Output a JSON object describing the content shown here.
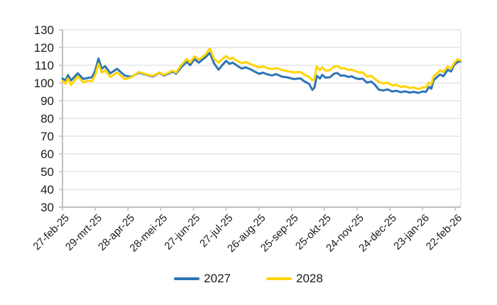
{
  "chart_data": {
    "type": "line",
    "title": "",
    "xlabel": "",
    "ylabel": "",
    "grid": true,
    "legend_position": "bottom",
    "y_axis": {
      "min": 30,
      "max": 130,
      "step": 10,
      "tick_labels": [
        "130",
        "120",
        "110",
        "100",
        "90",
        "80",
        "70",
        "60",
        "50",
        "40",
        "30"
      ]
    },
    "x_axis": {
      "tick_days": [
        0,
        30,
        60,
        90,
        120,
        150,
        180,
        210,
        240,
        270,
        300,
        330,
        360
      ],
      "tick_labels": [
        "27-feb-25",
        "29-mrt-25",
        "28-apr-25",
        "28-mei-25",
        "27-jun-25",
        "27-jul-25",
        "26-aug-25",
        "25-sep-25",
        "25-okt-25",
        "24-nov-25",
        "24-dec-25",
        "23-jan-26",
        "22-feb-26"
      ],
      "span_days": 365
    },
    "days": [
      0,
      3,
      5,
      8,
      14,
      19,
      23,
      27,
      30,
      33,
      36,
      39,
      44,
      50,
      57,
      63,
      70,
      76,
      83,
      89,
      93,
      98,
      101,
      104,
      109,
      114,
      117,
      121,
      125,
      128,
      131,
      135,
      139,
      143,
      147,
      150,
      153,
      156,
      160,
      164,
      168,
      172,
      176,
      180,
      184,
      188,
      192,
      196,
      201,
      206,
      212,
      218,
      222,
      226,
      229,
      231,
      233,
      236,
      238,
      241,
      245,
      249,
      252,
      255,
      258,
      262,
      265,
      268,
      272,
      275,
      279,
      283,
      286,
      290,
      294,
      298,
      302,
      306,
      310,
      314,
      318,
      322,
      326,
      330,
      333,
      336,
      338,
      340,
      343,
      346,
      349,
      353,
      356,
      359,
      362,
      365
    ],
    "series": [
      {
        "name": "2027",
        "color": "#2E75B6",
        "values": [
          102.5,
          101.5,
          104.5,
          101.5,
          105.5,
          102.3,
          102.8,
          103.2,
          107,
          113.8,
          108,
          109.5,
          105.5,
          108,
          104.2,
          103.5,
          105.8,
          104.8,
          103.6,
          105.8,
          104.2,
          105.5,
          106.5,
          105.2,
          109,
          112,
          110,
          113.5,
          111.5,
          113,
          114.5,
          117,
          111,
          107.5,
          110.5,
          112.5,
          110.8,
          111.5,
          109.8,
          108.2,
          108.8,
          107.8,
          106.5,
          105.2,
          105.8,
          104.8,
          104.3,
          105,
          103.6,
          103.2,
          102.2,
          102.6,
          100.8,
          99.5,
          96.1,
          97.5,
          104.1,
          102.5,
          104.6,
          103,
          103.2,
          105.3,
          105.6,
          104.1,
          104.3,
          103.4,
          103.8,
          102.8,
          102.2,
          102.5,
          100.2,
          100.8,
          99.2,
          96.2,
          95.8,
          96.4,
          95.2,
          95.6,
          94.8,
          95.3,
          94.6,
          95,
          94.4,
          95.2,
          95,
          97.8,
          96.8,
          101.5,
          103.2,
          104.8,
          103.8,
          107.5,
          106.5,
          110.2,
          111.8,
          112.2
        ]
      },
      {
        "name": "2028",
        "color": "#FFD400",
        "values": [
          101.2,
          99.6,
          102.6,
          98.8,
          103.8,
          100.3,
          101.2,
          101,
          104.5,
          110.8,
          105.8,
          107.2,
          103.4,
          106,
          102.2,
          103.2,
          106.2,
          105,
          104,
          106,
          104.6,
          106,
          107,
          105.8,
          110.2,
          113.5,
          111.5,
          115,
          113.2,
          114.5,
          116,
          119.5,
          113.5,
          111.5,
          113.8,
          115.2,
          113.5,
          114.3,
          112.5,
          111.2,
          111.8,
          110.8,
          109.8,
          108.8,
          109.3,
          108.4,
          107.9,
          108.4,
          107.4,
          106.7,
          106,
          106.2,
          104.6,
          103.4,
          101.5,
          102.5,
          109.3,
          107.2,
          108.8,
          107,
          107.2,
          109.2,
          109.6,
          108.2,
          108.4,
          107.3,
          107.6,
          106.8,
          105.9,
          106.1,
          103.6,
          104,
          102.4,
          100.6,
          99.8,
          100.2,
          98.6,
          98.9,
          97.8,
          98.2,
          97.2,
          97.5,
          96.6,
          97.4,
          97.6,
          100.2,
          99.4,
          103.6,
          105.2,
          107.2,
          106.2,
          109.2,
          108.2,
          111.4,
          113.4,
          112.6
        ]
      }
    ]
  },
  "colors": {
    "grid": "#D9D9D9",
    "axis": "#BFBFBF",
    "label": "#1A1A1A",
    "background": "#FFFFFF"
  }
}
